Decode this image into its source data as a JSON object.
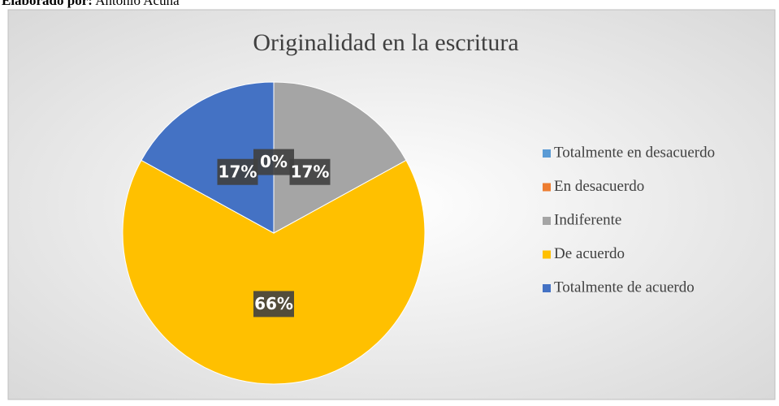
{
  "caption": {
    "label": "Elaborado por:",
    "author": "Antonio Acuña"
  },
  "chart_data": {
    "type": "pie",
    "title": "Originalidad en la escritura",
    "categories": [
      "Totalmente en desacuerdo",
      "En desacuerdo",
      "Indiferente",
      "De acuerdo",
      "Totalmente de acuerdo"
    ],
    "values": [
      0,
      0,
      17,
      66,
      17
    ],
    "value_labels": [
      "0%",
      "0%",
      "17%",
      "66%",
      "17%"
    ],
    "colors": [
      "#5b9bd5",
      "#ed7d31",
      "#a5a5a5",
      "#ffc000",
      "#4472c4"
    ],
    "legend": "right"
  }
}
